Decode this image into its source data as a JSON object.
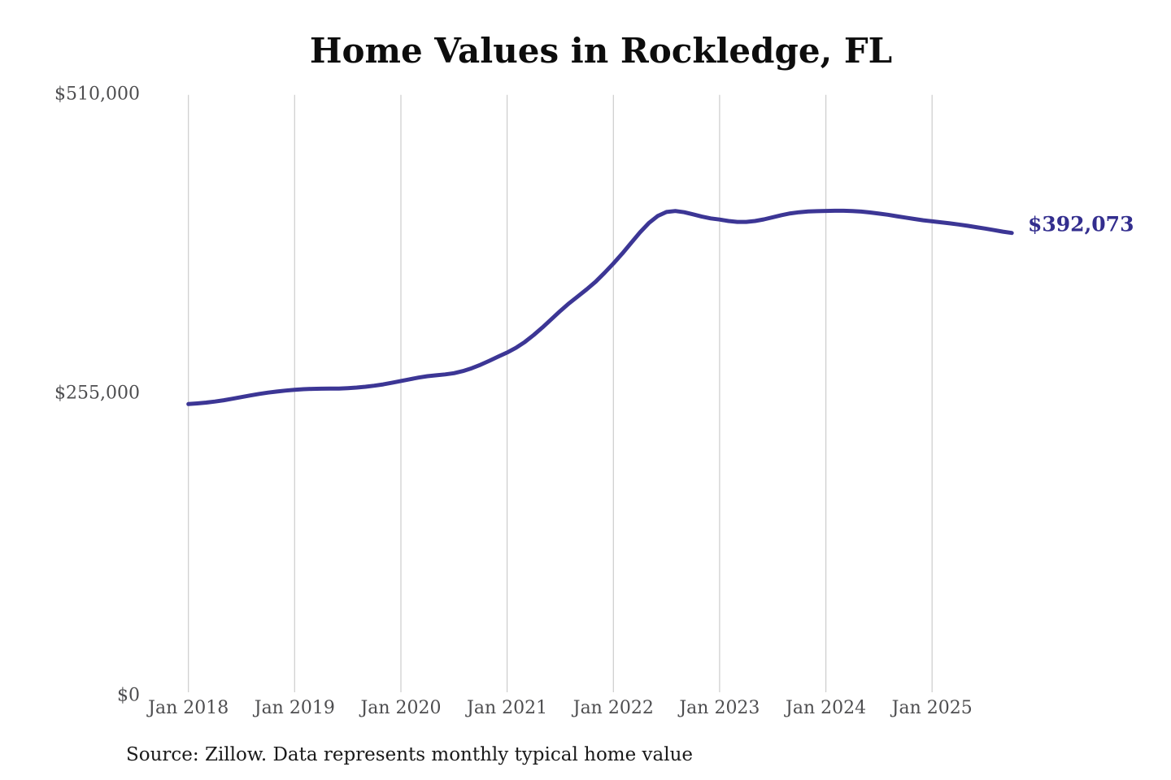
{
  "title": "Home Values in Rockledge, FL",
  "end_label": "$392,073",
  "source_note": "Source: Zillow. Data represents monthly typical home value",
  "colors": {
    "line": "#3c3695",
    "end_label": "#332e8e",
    "gridline": "#cccccc",
    "tick_label": "#4e4e50",
    "title": "#0d0d0d",
    "source": "#1a1a1a",
    "background": "#ffffff"
  },
  "chart_data": {
    "type": "line",
    "title": "Home Values in Rockledge, FL",
    "xlabel": "",
    "ylabel": "",
    "ylim": [
      0,
      510000
    ],
    "y_tick_labels": [
      "$0",
      "$255,000",
      "$510,000"
    ],
    "y_tick_values": [
      0,
      255000,
      510000
    ],
    "x_tick_labels": [
      "Jan 2018",
      "Jan 2019",
      "Jan 2020",
      "Jan 2021",
      "Jan 2022",
      "Jan 2023",
      "Jan 2024",
      "Jan 2025"
    ],
    "grid": "vertical-only",
    "legend": "none",
    "end_value": 392073,
    "series": [
      {
        "name": "Monthly typical home value (USD)",
        "x_start": "2018-01",
        "x_interval": "month",
        "values": [
          246000,
          246600,
          247300,
          248200,
          249300,
          250600,
          252000,
          253400,
          254700,
          255800,
          256700,
          257500,
          258200,
          258700,
          259000,
          259100,
          259200,
          259300,
          259600,
          260100,
          260800,
          261700,
          262800,
          264200,
          265700,
          267200,
          268600,
          269800,
          270600,
          271300,
          272400,
          274200,
          276600,
          279600,
          283000,
          286500,
          290000,
          294000,
          299000,
          305000,
          311500,
          318500,
          325500,
          332000,
          338000,
          344000,
          350500,
          358000,
          366000,
          374500,
          383500,
          392500,
          400500,
          406500,
          410000,
          410800,
          409800,
          408000,
          406000,
          404500,
          403500,
          402300,
          401500,
          401500,
          402300,
          403700,
          405500,
          407300,
          408800,
          409800,
          410400,
          410700,
          410900,
          411000,
          411000,
          410800,
          410300,
          409600,
          408600,
          407600,
          406400,
          405200,
          404000,
          402900,
          402000,
          401200,
          400300,
          399300,
          398200,
          397000,
          395800,
          394500,
          393200,
          392073
        ]
      }
    ]
  }
}
